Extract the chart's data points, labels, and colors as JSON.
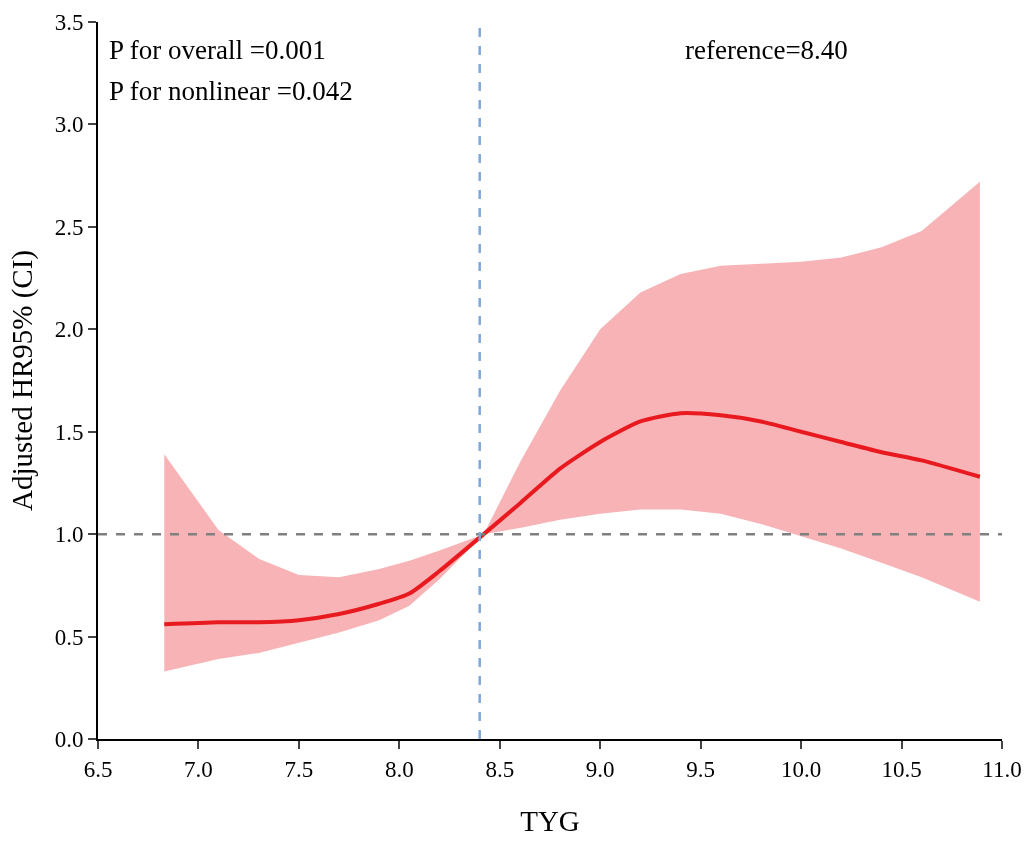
{
  "chart_data": {
    "type": "line",
    "xlabel": "TYG",
    "ylabel": "Adjusted HR95% (CI)",
    "x": [
      6.83,
      7.1,
      7.3,
      7.5,
      7.7,
      7.9,
      8.05,
      8.2,
      8.42,
      8.6,
      8.8,
      9.0,
      9.2,
      9.4,
      9.6,
      9.8,
      10.0,
      10.2,
      10.4,
      10.6,
      10.89
    ],
    "series": [
      {
        "color": "#e8191f",
        "values": [
          0.56,
          0.57,
          0.57,
          0.58,
          0.61,
          0.66,
          0.71,
          0.82,
          1.0,
          1.15,
          1.32,
          1.45,
          1.55,
          1.59,
          1.58,
          1.55,
          1.5,
          1.45,
          1.4,
          1.36,
          1.28
        ],
        "lower": [
          0.33,
          0.39,
          0.42,
          0.47,
          0.52,
          0.58,
          0.65,
          0.78,
          1.0,
          1.03,
          1.07,
          1.1,
          1.12,
          1.12,
          1.1,
          1.05,
          0.99,
          0.93,
          0.86,
          0.79,
          0.67
        ],
        "upper": [
          1.39,
          1.02,
          0.88,
          0.8,
          0.79,
          0.83,
          0.87,
          0.92,
          1.0,
          1.35,
          1.7,
          2.0,
          2.18,
          2.27,
          2.31,
          2.32,
          2.33,
          2.35,
          2.4,
          2.48,
          2.72
        ]
      }
    ],
    "xlim": [
      6.5,
      11.0
    ],
    "xticks": [
      {
        "value": 6.5,
        "label": "6.5"
      },
      {
        "value": 7,
        "label": "7.0"
      },
      {
        "value": 7.5,
        "label": "7.5"
      },
      {
        "value": 8,
        "label": "8.0"
      },
      {
        "value": 8.5,
        "label": "8.5"
      },
      {
        "value": 9,
        "label": "9.0"
      },
      {
        "value": 9.5,
        "label": "9.5"
      },
      {
        "value": 10,
        "label": "10.0"
      },
      {
        "value": 10.5,
        "label": "10.5"
      },
      {
        "value": 11,
        "label": "11.0"
      }
    ],
    "ylim": [
      0,
      3.5
    ],
    "yticks": [
      {
        "value": 0,
        "label": "0.0"
      },
      {
        "value": 0.5,
        "label": "0.5"
      },
      {
        "value": 1,
        "label": "1.0"
      },
      {
        "value": 1.5,
        "label": "1.5"
      },
      {
        "value": 2,
        "label": "2.0"
      },
      {
        "value": 2.5,
        "label": "2.5"
      },
      {
        "value": 3,
        "label": "3.0"
      },
      {
        "value": 3.5,
        "label": "3.5"
      }
    ],
    "ref_lines": [
      {
        "axis": "y",
        "value": 1.0,
        "color": "#808080",
        "line_style": "dashed"
      },
      {
        "axis": "x",
        "value": 8.4,
        "color": "#7fa8d8",
        "line_style": "dashed"
      }
    ],
    "annotations": [
      "P for overall =0.001",
      "P for nonlinear =0.042",
      "reference=8.40"
    ],
    "grid": false,
    "marker": "none",
    "line_style": "solid"
  }
}
